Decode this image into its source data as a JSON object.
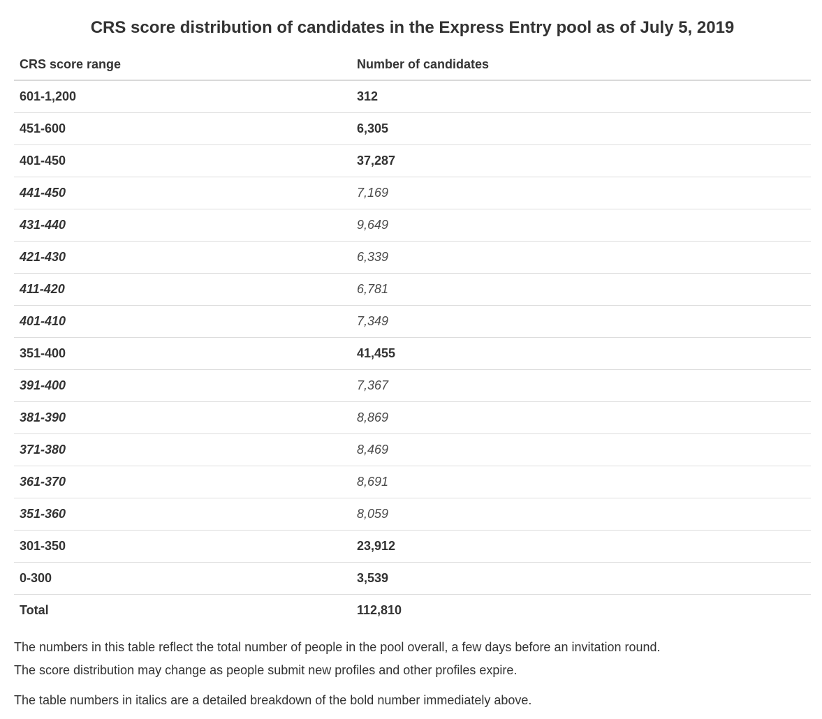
{
  "title": "CRS score distribution of candidates in the Express Entry pool as of July 5, 2019",
  "headers": {
    "range": "CRS score range",
    "count": "Number of candidates"
  },
  "rows": [
    {
      "range": "601-1,200",
      "count": "312",
      "style": "bold"
    },
    {
      "range": "451-600",
      "count": "6,305",
      "style": "bold"
    },
    {
      "range": "401-450",
      "count": "37,287",
      "style": "bold"
    },
    {
      "range": "441-450",
      "count": "7,169",
      "style": "italic"
    },
    {
      "range": "431-440",
      "count": "9,649",
      "style": "italic"
    },
    {
      "range": "421-430",
      "count": "6,339",
      "style": "italic"
    },
    {
      "range": "411-420",
      "count": "6,781",
      "style": "italic"
    },
    {
      "range": "401-410",
      "count": "7,349",
      "style": "italic"
    },
    {
      "range": "351-400",
      "count": "41,455",
      "style": "bold"
    },
    {
      "range": "391-400",
      "count": "7,367",
      "style": "italic"
    },
    {
      "range": "381-390",
      "count": "8,869",
      "style": "italic"
    },
    {
      "range": "371-380",
      "count": "8,469",
      "style": "italic"
    },
    {
      "range": "361-370",
      "count": "8,691",
      "style": "italic"
    },
    {
      "range": "351-360",
      "count": "8,059",
      "style": "italic"
    },
    {
      "range": "301-350",
      "count": "23,912",
      "style": "bold"
    },
    {
      "range": "0-300",
      "count": "3,539",
      "style": "bold"
    },
    {
      "range": "Total",
      "count": "112,810",
      "style": "total"
    }
  ],
  "notes": {
    "line1": "The numbers in this table reflect the total number of people in the pool overall, a few days before an invitation round.",
    "line2": "The score distribution may change as people submit new profiles and other profiles expire.",
    "line3": "The table numbers in italics are a detailed breakdown of the bold number immediately above."
  }
}
